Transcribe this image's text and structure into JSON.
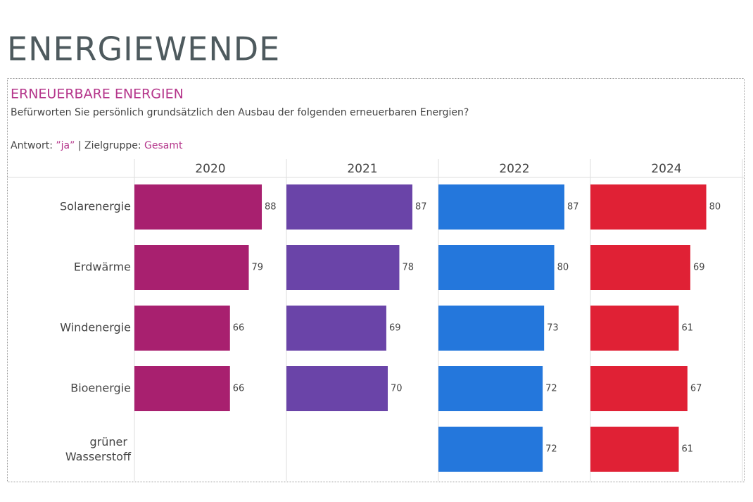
{
  "page_title": "ENERGIEWENDE",
  "chart_data": {
    "type": "bar",
    "orientation": "horizontal",
    "layout": "small-multiples",
    "title": "ERNEUERBARE ENERGIEN",
    "subtitle": "Befürworten Sie persönlich grundsätzlich den Ausbau der folgenden erneuerbaren Energien?",
    "filter": {
      "answer_label": "Antwort:",
      "answer": "”ja”",
      "group_label": "| Zielgruppe:",
      "group": "Gesamt"
    },
    "categories": [
      "Solarenergie",
      "Erdwärme",
      "Windenergie",
      "Bioenergie",
      "grüner Wasserstoff"
    ],
    "series": [
      {
        "name": "2020",
        "color": "#a8206f",
        "values": [
          88,
          79,
          66,
          66,
          null
        ]
      },
      {
        "name": "2021",
        "color": "#6a44a8",
        "values": [
          87,
          78,
          69,
          70,
          null
        ]
      },
      {
        "name": "2022",
        "color": "#2477dc",
        "values": [
          87,
          80,
          73,
          72,
          72
        ]
      },
      {
        "name": "2024",
        "color": "#e02135",
        "values": [
          80,
          69,
          61,
          67,
          61
        ]
      }
    ],
    "xlim": [
      0,
      105
    ]
  }
}
